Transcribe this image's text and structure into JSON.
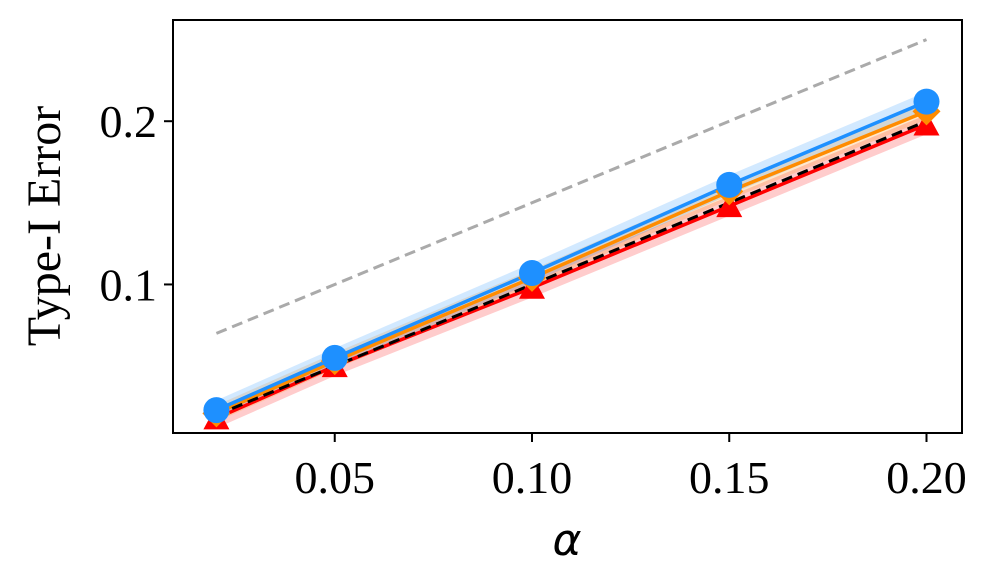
{
  "chart_data": {
    "type": "line",
    "title": "",
    "xlabel": "α",
    "ylabel": "Type-I Error",
    "x": [
      0.02,
      0.05,
      0.1,
      0.15,
      0.2
    ],
    "xlim": [
      0.009,
      0.209
    ],
    "ylim": [
      0.009,
      0.262
    ],
    "xticks": [
      0.05,
      0.1,
      0.15,
      0.2
    ],
    "xtick_labels": [
      "0.05",
      "0.10",
      "0.15",
      "0.20"
    ],
    "yticks": [
      0.1,
      0.2
    ],
    "ytick_labels": [
      "0.1",
      "0.2"
    ],
    "grid": false,
    "legend": "none",
    "series": [
      {
        "color": "#aaaaaa",
        "linestyle": "dashed",
        "marker": "none",
        "values": [
          0.07,
          0.1,
          0.15,
          0.2,
          0.25
        ]
      },
      {
        "color": "#ff0000",
        "linestyle": "solid",
        "marker": "triangle",
        "band": 0.006,
        "values": [
          0.018,
          0.05,
          0.098,
          0.148,
          0.198
        ]
      },
      {
        "color": "#ff8c00",
        "linestyle": "solid",
        "marker": "diamond",
        "band": 0.005,
        "values": [
          0.021,
          0.053,
          0.104,
          0.157,
          0.206
        ]
      },
      {
        "color": "#1e90ff",
        "linestyle": "solid",
        "marker": "circle",
        "band": 0.006,
        "values": [
          0.023,
          0.055,
          0.107,
          0.161,
          0.212
        ]
      },
      {
        "color": "#000000",
        "linestyle": "dashed",
        "marker": "none",
        "values": [
          0.02,
          0.05,
          0.1,
          0.15,
          0.2
        ]
      }
    ]
  }
}
